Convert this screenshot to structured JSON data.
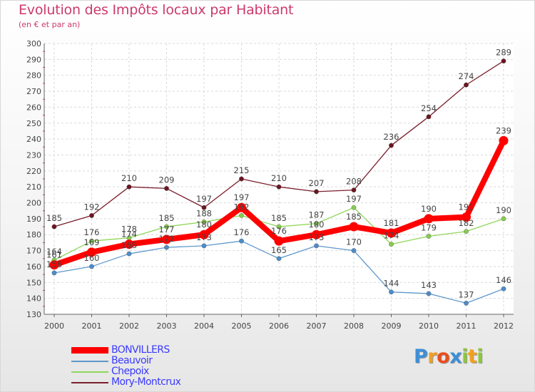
{
  "chart_data": {
    "type": "line",
    "title": "Evolution des Impôts locaux par Habitant",
    "subtitle": "(en € et par an)",
    "xlabel": "",
    "ylabel": "",
    "ylim": [
      130,
      300
    ],
    "ytick_step": 10,
    "grid": true,
    "legend_position": "bottom-left",
    "x": [
      "2000",
      "2001",
      "2002",
      "2003",
      "2004",
      "2005",
      "2006",
      "2007",
      "2008",
      "2009",
      "2010",
      "2011",
      "2012"
    ],
    "series": [
      {
        "name": "Mory-Montcrux",
        "color": "#7a1f2c",
        "values": [
          185,
          192,
          210,
          209,
          197,
          215,
          210,
          207,
          208,
          236,
          254,
          274,
          289
        ]
      },
      {
        "name": "Chepoix",
        "color": "#8fd65a",
        "values": [
          164,
          176,
          178,
          185,
          188,
          192,
          185,
          187,
          197,
          174,
          179,
          182,
          190
        ]
      },
      {
        "name": "Beauvoir",
        "color": "#5f98cc",
        "values": [
          156,
          160,
          168,
          172,
          173,
          176,
          165,
          173,
          170,
          144,
          143,
          137,
          146
        ]
      },
      {
        "name": "BONVILLERS",
        "color": "#ff0000",
        "values": [
          161,
          169,
          174,
          177,
          180,
          197,
          176,
          180,
          185,
          181,
          190,
          191,
          239
        ]
      }
    ],
    "labels": [
      {
        "series": "Mory-Montcrux",
        "values": [
          "185",
          "192",
          "210",
          "209",
          "197",
          "215",
          "210",
          "207",
          "208",
          "236",
          "254",
          "274",
          "289"
        ]
      },
      {
        "series": "Chepoix",
        "values": [
          "164",
          "176",
          "178",
          "185",
          "188",
          "192",
          "185",
          "187",
          "197",
          "174",
          "179",
          "182",
          "190"
        ]
      },
      {
        "series": "Beauvoir",
        "values": [
          "156",
          "160",
          "168",
          "172",
          "173",
          "176",
          "165",
          "173",
          "170",
          "144",
          "143",
          "137",
          "146"
        ]
      },
      {
        "series": "BONVILLERS",
        "values": [
          "161",
          "169",
          "174",
          "177",
          "180",
          "197",
          "176",
          "180",
          "185",
          "181",
          "190",
          "191",
          "239"
        ]
      }
    ]
  },
  "legend": [
    {
      "label": "BONVILLERS",
      "color": "#ff0000",
      "text_color": "#3a3aff"
    },
    {
      "label": "Beauvoir",
      "color": "#5f98cc",
      "text_color": "#3a3aff"
    },
    {
      "label": "Chepoix",
      "color": "#8fd65a",
      "text_color": "#3a3aff"
    },
    {
      "label": "Mory-Montcrux",
      "color": "#7a1f2c",
      "text_color": "#3a3aff"
    }
  ],
  "logo": {
    "text": "Proxiti",
    "letters": [
      "P",
      "r",
      "o",
      "x",
      "i",
      "t",
      "i"
    ]
  }
}
